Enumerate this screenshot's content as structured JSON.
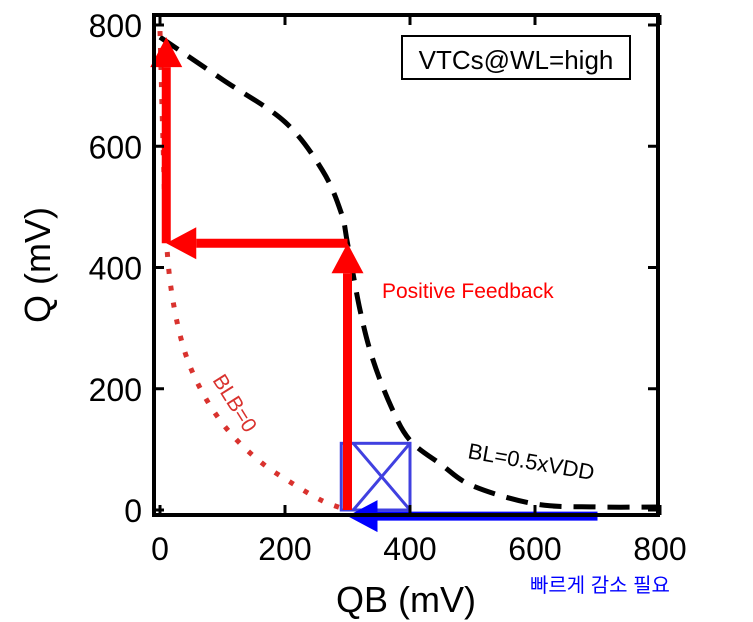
{
  "chart_data": {
    "type": "line",
    "xlabel": "QB (mV)",
    "ylabel": "Q (mV)",
    "xlim": [
      0,
      800
    ],
    "ylim": [
      0,
      800
    ],
    "xticks": [
      "0",
      "200",
      "400",
      "600",
      "800"
    ],
    "yticks": [
      "0",
      "200",
      "400",
      "600",
      "800"
    ],
    "grid": false,
    "legend": {
      "text": "VTCs@WL=high",
      "placement": "top-right"
    },
    "series": [
      {
        "name": "BL=0.5xVDD",
        "style": "dashed",
        "color": "#000000",
        "x": [
          0,
          100,
          200,
          260,
          290,
          300,
          320,
          340,
          370,
          400,
          450,
          500,
          600,
          700,
          800
        ],
        "y": [
          780,
          710,
          640,
          560,
          490,
          440,
          330,
          250,
          170,
          115,
          75,
          40,
          10,
          5,
          5
        ]
      },
      {
        "name": "BLB=0",
        "style": "dotted",
        "color": "#d9322e",
        "x": [
          0,
          5,
          10,
          20,
          40,
          70,
          110,
          160,
          210,
          260,
          300
        ],
        "y": [
          790,
          600,
          450,
          350,
          260,
          190,
          130,
          80,
          45,
          15,
          0
        ]
      }
    ],
    "annotations": {
      "positive_feedback": "Positive Feedback",
      "note": "빠르게 감소 필요",
      "red_color": "#ff0000",
      "blue_color": "#0000ff",
      "red_path": [
        [
          300,
          0
        ],
        [
          300,
          440
        ],
        [
          10,
          440
        ],
        [
          10,
          780
        ]
      ],
      "blue_arrow": [
        [
          700,
          -10
        ],
        [
          300,
          -10
        ]
      ],
      "blue_box": {
        "x": [
          290,
          400
        ],
        "y": [
          0,
          110
        ]
      }
    }
  }
}
